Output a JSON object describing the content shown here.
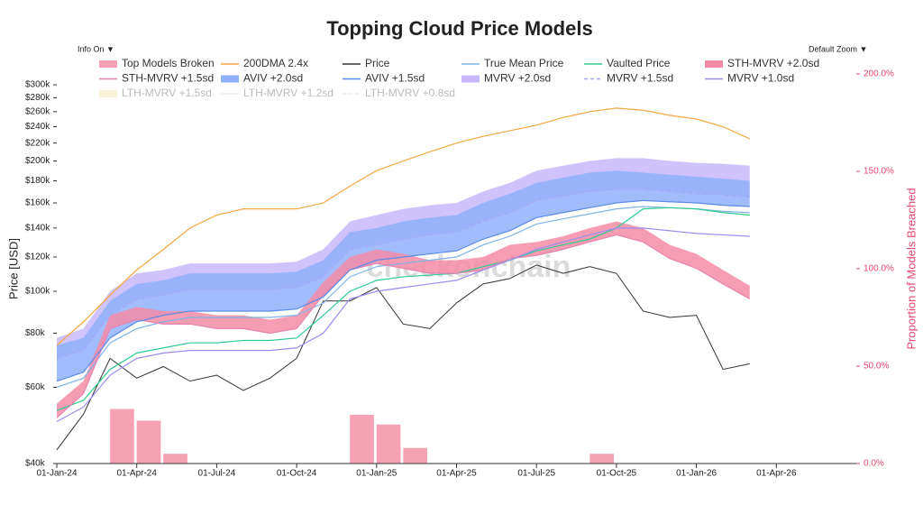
{
  "chart_data": {
    "type": "line",
    "title": "Topping Cloud Price Models",
    "menu_left": "Info On ▼",
    "menu_right": "Default Zoom ▼",
    "watermark": "checkonchain",
    "ylabel": "Price [USD]",
    "y2label": "Proportion of Models Breached",
    "log_y": true,
    "x": [
      "01-Jan-24",
      "01-Feb-24",
      "01-Mar-24",
      "01-Apr-24",
      "01-May-24",
      "01-Jun-24",
      "01-Jul-24",
      "01-Aug-24",
      "01-Sep-24",
      "01-Oct-24",
      "01-Nov-24",
      "01-Dec-24",
      "01-Jan-25",
      "01-Feb-25",
      "01-Mar-25",
      "01-Apr-25",
      "01-May-25",
      "01-Jun-25",
      "01-Jul-25",
      "01-Aug-25",
      "01-Sep-25",
      "01-Oct-25",
      "01-Nov-25",
      "01-Dec-25",
      "01-Jan-26",
      "01-Feb-26",
      "01-Mar-26"
    ],
    "xlim": [
      "01-Jan-24",
      "01-Jul-26"
    ],
    "xticks": [
      "01-Jan-24",
      "01-Apr-24",
      "01-Jul-24",
      "01-Oct-24",
      "01-Jan-25",
      "01-Apr-25",
      "01-Jul-25",
      "01-Oct-25",
      "01-Jan-26",
      "01-Apr-26"
    ],
    "ylim": [
      40000,
      300000
    ],
    "yticks": [
      {
        "value": 40000,
        "label": "$40k"
      },
      {
        "value": 60000,
        "label": "$60k"
      },
      {
        "value": 80000,
        "label": "$80k"
      },
      {
        "value": 100000,
        "label": "$100k"
      },
      {
        "value": 120000,
        "label": "$120k"
      },
      {
        "value": 140000,
        "label": "$140k"
      },
      {
        "value": 160000,
        "label": "$160k"
      },
      {
        "value": 180000,
        "label": "$180k"
      },
      {
        "value": 200000,
        "label": "$200k"
      },
      {
        "value": 220000,
        "label": "$220k"
      },
      {
        "value": 240000,
        "label": "$240k"
      },
      {
        "value": 260000,
        "label": "$260k"
      },
      {
        "value": 280000,
        "label": "$280k"
      },
      {
        "value": 300000,
        "label": "$300k"
      }
    ],
    "y2lim": [
      0,
      200
    ],
    "y2ticks": [
      {
        "value": 0,
        "label": "0.0%"
      },
      {
        "value": 50,
        "label": "50.0%"
      },
      {
        "value": 100,
        "label": "100.0%"
      },
      {
        "value": 150,
        "label": "150.0%"
      },
      {
        "value": 200,
        "label": "200.0%"
      }
    ],
    "series": [
      {
        "name": "Top Models Broken",
        "color": "#f7a1b5",
        "style": "bar",
        "axis": "y2",
        "values": [
          0,
          0,
          28,
          22,
          5,
          0,
          0,
          0,
          0,
          0,
          0,
          25,
          20,
          8,
          0,
          0,
          0,
          0,
          0,
          0,
          5,
          0,
          0,
          0,
          0,
          0,
          0
        ]
      },
      {
        "name": "200DMA 2.4x",
        "color": "#f5a742",
        "style": "line",
        "values": [
          75000,
          85000,
          98000,
          112000,
          125000,
          140000,
          150000,
          155000,
          155000,
          155000,
          160000,
          175000,
          190000,
          200000,
          210000,
          220000,
          228000,
          235000,
          242000,
          252000,
          260000,
          265000,
          262000,
          255000,
          250000,
          240000,
          225000
        ]
      },
      {
        "name": "Price",
        "color": "#333333",
        "style": "line",
        "values": [
          43000,
          52000,
          70000,
          63000,
          67000,
          62000,
          64000,
          59000,
          63000,
          70000,
          95000,
          95000,
          102000,
          84000,
          82000,
          94000,
          104000,
          107000,
          115000,
          110000,
          114000,
          110000,
          90000,
          87000,
          88000,
          66000,
          68000
        ]
      },
      {
        "name": "True Mean Price",
        "color": "#7fb3e8",
        "style": "line",
        "values": [
          60000,
          63000,
          76000,
          82000,
          85000,
          87000,
          87000,
          87000,
          87000,
          88000,
          94000,
          108000,
          114000,
          116000,
          118000,
          120000,
          128000,
          134000,
          143000,
          147000,
          151000,
          155000,
          157000,
          156000,
          155000,
          153000,
          152000
        ]
      },
      {
        "name": "Vaulted Price",
        "color": "#2ecc8f",
        "style": "line",
        "values": [
          53000,
          56000,
          66000,
          72000,
          74000,
          76000,
          76000,
          77000,
          77000,
          78000,
          88000,
          100000,
          106000,
          108000,
          109000,
          110000,
          114000,
          118000,
          124000,
          128000,
          132000,
          140000,
          155000,
          156000,
          155000,
          152000,
          150000
        ]
      },
      {
        "name": "STH-MVRV +2.0sd",
        "color": "#f48ca6",
        "style": "band",
        "fill_to": "STH-MVRV +1.5sd",
        "values": [
          55000,
          62000,
          88000,
          92000,
          90000,
          90000,
          88000,
          88000,
          86000,
          88000,
          105000,
          120000,
          125000,
          122000,
          118000,
          118000,
          120000,
          128000,
          130000,
          134000,
          140000,
          145000,
          140000,
          128000,
          122000,
          112000,
          103000
        ]
      },
      {
        "name": "STH-MVRV +1.5sd",
        "color": "#e882b0",
        "style": "line",
        "values": [
          51000,
          58000,
          82000,
          86000,
          84000,
          84000,
          82000,
          82000,
          80000,
          82000,
          98000,
          112000,
          116000,
          113000,
          110000,
          110000,
          112000,
          119000,
          121000,
          125000,
          130000,
          135000,
          130000,
          119000,
          113000,
          104000,
          96000
        ]
      },
      {
        "name": "AVIV +2.0sd",
        "color": "#8fb0fa",
        "style": "band",
        "fill_to": "AVIV +1.5sd",
        "values": [
          75000,
          78000,
          95000,
          104000,
          106000,
          110000,
          110000,
          110000,
          110000,
          111000,
          118000,
          137000,
          140000,
          145000,
          148000,
          150000,
          160000,
          168000,
          178000,
          183000,
          188000,
          190000,
          188000,
          186000,
          184000,
          182000,
          180000
        ]
      },
      {
        "name": "AVIV +1.5sd",
        "color": "#5a8be8",
        "style": "line",
        "values": [
          62000,
          65000,
          78000,
          85000,
          88000,
          90000,
          90000,
          90000,
          90000,
          91000,
          97000,
          112000,
          118000,
          120000,
          122000,
          124000,
          132000,
          138000,
          148000,
          152000,
          156000,
          160000,
          162000,
          161000,
          160000,
          158000,
          157000
        ]
      },
      {
        "name": "MVRV +2.0sd",
        "color": "#c8b8fb",
        "style": "band",
        "fill_to": "MVRV +1.5sd",
        "values": [
          78000,
          82000,
          100000,
          110000,
          112000,
          116000,
          116000,
          116000,
          116000,
          117000,
          125000,
          145000,
          150000,
          155000,
          158000,
          160000,
          170000,
          178000,
          190000,
          195000,
          200000,
          203000,
          203000,
          200000,
          198000,
          197000,
          195000
        ]
      },
      {
        "name": "MVRV +1.5sd",
        "color": "#a5a8f0",
        "style": "dash",
        "values": [
          70000,
          73000,
          88000,
          96000,
          98000,
          101000,
          101000,
          101000,
          101000,
          102000,
          108000,
          125000,
          128000,
          132000,
          135000,
          137000,
          145000,
          152000,
          162000,
          166000,
          170000,
          172000,
          172000,
          170000,
          168000,
          167000,
          165000
        ]
      },
      {
        "name": "MVRV +1.0sd",
        "color": "#9b8df0",
        "style": "line",
        "values": [
          50000,
          54000,
          64000,
          70000,
          72000,
          73000,
          73000,
          73000,
          73000,
          74000,
          80000,
          96000,
          100000,
          102000,
          104000,
          106000,
          112000,
          118000,
          125000,
          130000,
          135000,
          140000,
          140000,
          138000,
          136000,
          135000,
          134000
        ]
      },
      {
        "name": "LTH-MVRV +1.5sd",
        "color": "#f7e8b0",
        "style": "band",
        "hidden": true
      },
      {
        "name": "LTH-MVRV +1.2sd",
        "color": "#dddddd",
        "style": "line",
        "hidden": true
      },
      {
        "name": "LTH-MVRV +0.8sd",
        "color": "#b8e8d8",
        "style": "dash",
        "hidden": true
      }
    ]
  }
}
